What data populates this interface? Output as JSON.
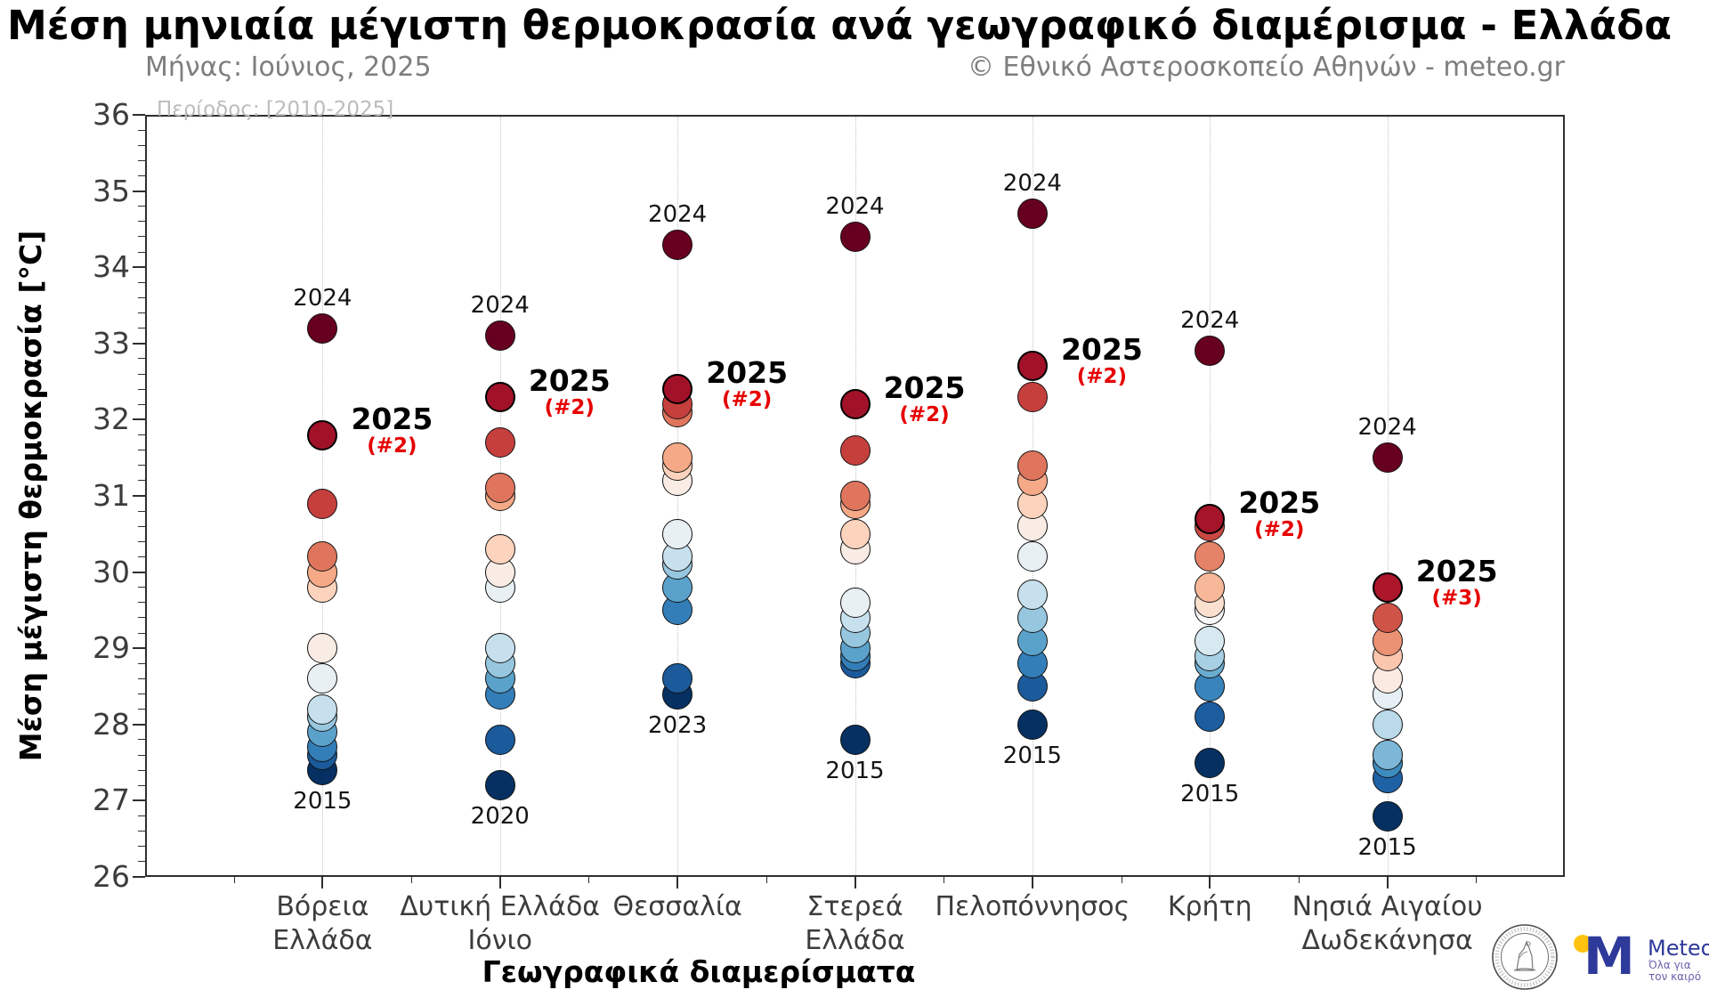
{
  "title": "Μέση μηνιαία μέγιστη θερμοκρασία ανά γεωγραφικό διαμέρισμα - Ελλάδα",
  "subtitle_left": "Μήνας: Ιούνιος, 2025",
  "subtitle_right": "© Εθνικό Αστεροσκοπείο Αθηνών - meteo.gr",
  "period_note": "Περίοδος: [2010-2025]",
  "chart_data": {
    "type": "scatter",
    "title": "Μέση μηνιαία μέγιστη θερμοκρασία ανά γεωγραφικό διαμέρισμα - Ελλάδα",
    "xlabel": "Γεωγραφικά διαμερίσματα",
    "ylabel": "Μέση μέγιστη θερμοκρασία [°C]",
    "ylim": [
      26,
      36
    ],
    "ytick_step": 1,
    "yminor_step": 0.2,
    "grid": "vertical-dotted-per-category",
    "legend": "none",
    "categories": [
      {
        "label_lines": [
          "Βόρεια",
          "Ελλάδα"
        ],
        "values": [
          33.2,
          31.8,
          30.9,
          30.2,
          30.0,
          29.8,
          29.0,
          28.6,
          28.2,
          28.1,
          27.9,
          27.7,
          27.6,
          27.4
        ],
        "top_year": "2024",
        "highlight_year": "2025",
        "highlight_rank": "(#2)",
        "bottom_year": "2015"
      },
      {
        "label_lines": [
          "Δυτική Ελλάδα",
          "Ιόνιο"
        ],
        "values": [
          33.1,
          32.3,
          31.7,
          31.1,
          31.0,
          30.3,
          30.0,
          29.8,
          29.0,
          28.8,
          28.6,
          28.4,
          27.8,
          27.2
        ],
        "top_year": "2024",
        "highlight_year": "2025",
        "highlight_rank": "(#2)",
        "bottom_year": "2020"
      },
      {
        "label_lines": [
          "Θεσσαλία"
        ],
        "values": [
          34.3,
          32.4,
          32.2,
          32.1,
          31.5,
          31.4,
          31.2,
          30.5,
          30.2,
          30.1,
          29.8,
          29.5,
          28.6,
          28.4
        ],
        "top_year": "2024",
        "highlight_year": "2025",
        "highlight_rank": "(#2)",
        "bottom_year": "2023"
      },
      {
        "label_lines": [
          "Στερεά",
          "Ελλάδα"
        ],
        "values": [
          34.4,
          32.2,
          31.6,
          31.0,
          30.9,
          30.5,
          30.3,
          29.6,
          29.4,
          29.2,
          29.0,
          28.9,
          28.8,
          27.8
        ],
        "top_year": "2024",
        "highlight_year": "2025",
        "highlight_rank": "(#2)",
        "bottom_year": "2015"
      },
      {
        "label_lines": [
          "Πελοπόννησος"
        ],
        "values": [
          34.7,
          32.7,
          32.3,
          31.4,
          31.2,
          30.9,
          30.6,
          30.2,
          29.7,
          29.4,
          29.1,
          28.8,
          28.5,
          28.0
        ],
        "top_year": "2024",
        "highlight_year": "2025",
        "highlight_rank": "(#2)",
        "bottom_year": "2015"
      },
      {
        "label_lines": [
          "Κρήτη"
        ],
        "values": [
          32.9,
          30.7,
          30.6,
          30.2,
          29.8,
          29.6,
          29.5,
          29.1,
          28.9,
          28.8,
          28.5,
          28.1,
          27.5
        ],
        "top_year": "2024",
        "highlight_year": "2025",
        "highlight_rank": "(#2)",
        "bottom_year": "2015"
      },
      {
        "label_lines": [
          "Νησιά Αιγαίου",
          "Δωδεκάνησα"
        ],
        "values": [
          31.5,
          29.8,
          29.4,
          29.1,
          28.9,
          28.6,
          28.4,
          28.0,
          27.6,
          27.5,
          27.3,
          26.8
        ],
        "top_year": "2024",
        "highlight_year": "2025",
        "highlight_rank": "(#3)",
        "bottom_year": "2015"
      }
    ],
    "palette_rdbu_stops": [
      "#67001f",
      "#b2182b",
      "#d6604d",
      "#f4a582",
      "#fddbc7",
      "#f7f7f7",
      "#d1e5f0",
      "#92c5de",
      "#4393c3",
      "#2166ac",
      "#053061"
    ],
    "colors": {
      "highlight_rank": "#e60000",
      "annotation": "#151515",
      "axis": "#2f2f2f",
      "tick_label": "#3c3c3c",
      "subtitle": "#7e7e7e",
      "period_note": "#bcbcbc",
      "gridline": "#c4c4c4"
    }
  },
  "logos": {
    "meteo_name": "Meteo",
    "meteo_tagline_line1": "Όλα για",
    "meteo_tagline_line2": "τον καιρό",
    "meteo_blue": "#2e3a9a",
    "meteo_yellow": "#ffc20e",
    "meteo_tagline_color": "#6b62ad"
  }
}
